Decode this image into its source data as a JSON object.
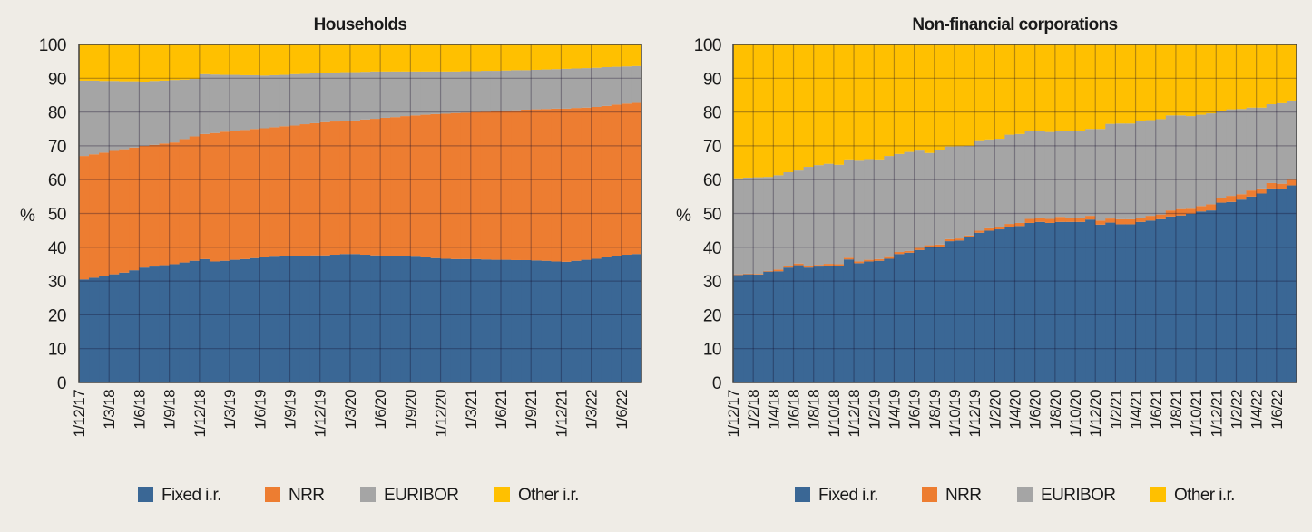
{
  "colors": {
    "Fixed i.r.": "#3a6795",
    "NRR": "#ed7d31",
    "EURIBOR": "#a5a5a5",
    "Other i.r.": "#ffc000",
    "background": "#efece6"
  },
  "chart_data": [
    {
      "type": "stacked-bar",
      "title": "Households",
      "ylabel": "%",
      "ylim": [
        0,
        100
      ],
      "yticks": [
        0,
        10,
        20,
        30,
        40,
        50,
        60,
        70,
        80,
        90,
        100
      ],
      "grid": true,
      "legend": "bottom",
      "tick_every": 3,
      "categories": [
        "1/12/17",
        "1/1/18",
        "1/2/18",
        "1/3/18",
        "1/4/18",
        "1/5/18",
        "1/6/18",
        "1/7/18",
        "1/8/18",
        "1/9/18",
        "1/10/18",
        "1/11/18",
        "1/12/18",
        "1/1/19",
        "1/2/19",
        "1/3/19",
        "1/4/19",
        "1/5/19",
        "1/6/19",
        "1/7/19",
        "1/8/19",
        "1/9/19",
        "1/10/19",
        "1/11/19",
        "1/12/19",
        "1/1/20",
        "1/2/20",
        "1/3/20",
        "1/4/20",
        "1/5/20",
        "1/6/20",
        "1/7/20",
        "1/8/20",
        "1/9/20",
        "1/10/20",
        "1/11/20",
        "1/12/20",
        "1/1/21",
        "1/2/21",
        "1/3/21",
        "1/4/21",
        "1/5/21",
        "1/6/21",
        "1/7/21",
        "1/8/21",
        "1/9/21",
        "1/10/21",
        "1/11/21",
        "1/12/21",
        "1/1/22",
        "1/2/22",
        "1/3/22",
        "1/4/22",
        "1/5/22",
        "1/6/22",
        "1/7/22"
      ],
      "series": [
        {
          "name": "Fixed i.r.",
          "values": [
            30.5,
            31,
            31.5,
            32,
            32.5,
            33.2,
            34,
            34.3,
            34.7,
            35,
            35.5,
            36,
            36.5,
            35.8,
            36,
            36.3,
            36.5,
            36.8,
            37,
            37.2,
            37.4,
            37.5,
            37.5,
            37.6,
            37.6,
            37.8,
            38,
            38,
            37.8,
            37.6,
            37.5,
            37.4,
            37.3,
            37.2,
            37,
            36.8,
            36.6,
            36.5,
            36.5,
            36.5,
            36.4,
            36.3,
            36.3,
            36.2,
            36.2,
            36.1,
            36,
            35.8,
            35.7,
            36,
            36.3,
            36.6,
            37,
            37.4,
            37.8,
            38
          ]
        },
        {
          "name": "NRR",
          "values": [
            36.5,
            36.5,
            36.5,
            36.5,
            36.5,
            36.3,
            36,
            36,
            36,
            36,
            36.5,
            36.8,
            37,
            38,
            38.2,
            38.2,
            38.2,
            38.2,
            38.2,
            38.3,
            38.4,
            38.5,
            38.9,
            39.1,
            39.4,
            39.4,
            39.4,
            39.5,
            40,
            40.4,
            40.8,
            41.1,
            41.5,
            41.8,
            42.2,
            42.6,
            42.9,
            43.2,
            43.3,
            43.5,
            43.7,
            44,
            44.1,
            44.3,
            44.5,
            44.7,
            44.9,
            45.2,
            45.3,
            45.2,
            45,
            44.9,
            44.8,
            44.8,
            44.7,
            44.7
          ]
        },
        {
          "name": "EURIBOR",
          "values": [
            22.3,
            21.8,
            21.2,
            20.7,
            20.1,
            19.6,
            19,
            18.9,
            18.6,
            18.5,
            17.6,
            17,
            17.7,
            17.3,
            16.8,
            16.5,
            16.2,
            15.9,
            15.6,
            15.4,
            15.2,
            15.2,
            14.9,
            14.8,
            14.6,
            14.5,
            14.4,
            14.3,
            14.1,
            14,
            13.7,
            13.5,
            13.2,
            13,
            12.8,
            12.6,
            12.5,
            12.3,
            12.3,
            12.1,
            12.1,
            11.9,
            11.9,
            11.9,
            11.7,
            11.7,
            11.7,
            11.7,
            11.8,
            11.7,
            11.7,
            11.6,
            11.5,
            11.2,
            11,
            10.9
          ]
        },
        {
          "name": "Other i.r.",
          "values": [
            10.7,
            10.7,
            10.8,
            10.8,
            10.9,
            10.9,
            11,
            10.8,
            10.7,
            10.5,
            10.4,
            10.2,
            8.8,
            8.9,
            9,
            9,
            9.1,
            9.1,
            9.2,
            9.1,
            9,
            8.8,
            8.7,
            8.5,
            8.4,
            8.3,
            8.2,
            8.2,
            8.1,
            8,
            8,
            8,
            8,
            8,
            8,
            8,
            8,
            8,
            7.9,
            7.9,
            7.8,
            7.8,
            7.7,
            7.6,
            7.6,
            7.5,
            7.4,
            7.3,
            7.2,
            7.1,
            7,
            6.9,
            6.7,
            6.6,
            6.5,
            6.4
          ]
        }
      ]
    },
    {
      "type": "stacked-bar",
      "title": "Non-financial corporations",
      "ylabel": "%",
      "ylim": [
        0,
        100
      ],
      "yticks": [
        0,
        10,
        20,
        30,
        40,
        50,
        60,
        70,
        80,
        90,
        100
      ],
      "grid": true,
      "legend": "bottom",
      "tick_every": 2,
      "categories": [
        "1/12/17",
        "1/1/18",
        "1/2/18",
        "1/3/18",
        "1/4/18",
        "1/5/18",
        "1/6/18",
        "1/7/18",
        "1/8/18",
        "1/9/18",
        "1/10/18",
        "1/11/18",
        "1/12/18",
        "1/1/19",
        "1/2/19",
        "1/3/19",
        "1/4/19",
        "1/5/19",
        "1/6/19",
        "1/7/19",
        "1/8/19",
        "1/9/19",
        "1/10/19",
        "1/11/19",
        "1/12/19",
        "1/1/20",
        "1/2/20",
        "1/3/20",
        "1/4/20",
        "1/5/20",
        "1/6/20",
        "1/7/20",
        "1/8/20",
        "1/9/20",
        "1/10/20",
        "1/11/20",
        "1/12/20",
        "1/1/21",
        "1/2/21",
        "1/3/21",
        "1/4/21",
        "1/5/21",
        "1/6/21",
        "1/7/21",
        "1/8/21",
        "1/9/21",
        "1/10/21",
        "1/11/21",
        "1/12/21",
        "1/1/22",
        "1/2/22",
        "1/3/22",
        "1/4/22",
        "1/5/22",
        "1/6/22",
        "1/7/22"
      ],
      "series": [
        {
          "name": "Fixed i.r.",
          "values": [
            31.8,
            32,
            31.9,
            32.8,
            32.9,
            34,
            34.7,
            34,
            34.3,
            34.6,
            34.5,
            36.4,
            35.3,
            35.8,
            36,
            36.6,
            38,
            38.4,
            39.2,
            40,
            40.2,
            41.8,
            42,
            42.9,
            44.3,
            44.9,
            45.3,
            46.1,
            46.3,
            47.2,
            47.5,
            47.2,
            47.5,
            47.5,
            47.5,
            48.2,
            46.7,
            47.3,
            46.8,
            46.8,
            47.5,
            47.9,
            48.3,
            49.1,
            49.4,
            49.9,
            50.6,
            50.9,
            53.2,
            53.4,
            54.1,
            55,
            55.9,
            57.4,
            57.2,
            58.3
          ]
        },
        {
          "name": "NRR",
          "values": [
            0.2,
            0.2,
            0.2,
            0.2,
            0.5,
            0.5,
            0.5,
            0.5,
            0.5,
            0.5,
            0.5,
            0.5,
            0.5,
            0.5,
            0.5,
            0.5,
            0.6,
            0.5,
            0.6,
            0.6,
            0.6,
            0.6,
            0.6,
            0.6,
            0.6,
            0.7,
            0.8,
            0.8,
            0.9,
            1.2,
            1.3,
            1.2,
            1.5,
            1.3,
            1.3,
            1.1,
            1.2,
            1.2,
            1.5,
            1.5,
            1.3,
            1.4,
            1.4,
            1.8,
            1.9,
            1.5,
            1.6,
            1.8,
            1.4,
            1.8,
            1.6,
            1.8,
            1.5,
            1.6,
            1.6,
            1.7
          ]
        },
        {
          "name": "EURIBOR",
          "values": [
            28.4,
            28.4,
            28.6,
            27.8,
            27.9,
            27.7,
            27.5,
            29.3,
            29.5,
            29.6,
            29.4,
            29.1,
            29.8,
            29.8,
            29.5,
            29.9,
            29,
            29.3,
            28.8,
            27.3,
            28,
            27.4,
            27.3,
            26.5,
            26.5,
            26.3,
            26,
            26.4,
            26.3,
            25.9,
            25.7,
            25.7,
            25.5,
            25.6,
            25.5,
            25.7,
            27.1,
            28,
            28.3,
            28.3,
            28.5,
            28.3,
            28.2,
            28.1,
            27.7,
            27.4,
            27,
            26.9,
            25.8,
            25.6,
            25.2,
            24.5,
            23.9,
            23.3,
            23.8,
            23.4
          ]
        },
        {
          "name": "Other i.r.",
          "values": [
            39.6,
            39.4,
            39.3,
            39.2,
            38.7,
            37.8,
            37.3,
            36.2,
            35.7,
            35.3,
            35.6,
            34,
            34.4,
            33.9,
            34,
            33,
            32.4,
            31.8,
            31.4,
            32.1,
            31.2,
            30.2,
            30.1,
            30,
            28.6,
            28.1,
            27.9,
            26.7,
            26.5,
            25.7,
            25.5,
            25.9,
            25.5,
            25.6,
            25.7,
            25,
            25,
            23.5,
            23.4,
            23.4,
            22.7,
            22.4,
            22.1,
            21,
            21,
            21.2,
            20.8,
            20.4,
            19.6,
            19.2,
            19.1,
            18.7,
            18.7,
            17.7,
            17.4,
            16.6
          ]
        }
      ]
    }
  ]
}
